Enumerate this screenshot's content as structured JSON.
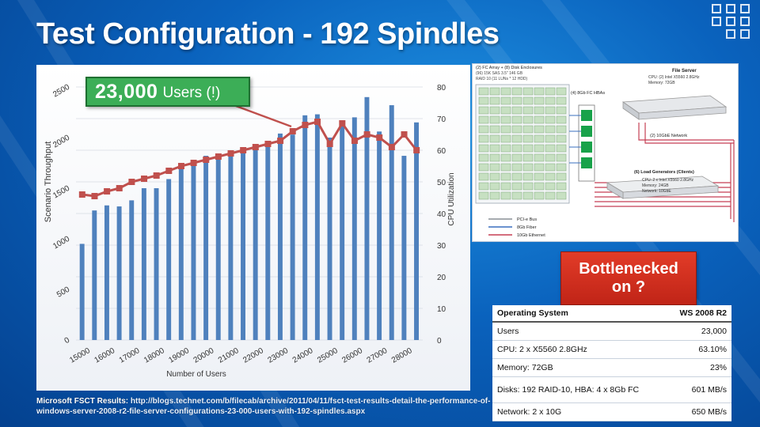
{
  "slide": {
    "title": "Test Configuration - 192 Spindles",
    "callout": {
      "number": "23,000",
      "text": "Users (!)"
    },
    "bottleneck": {
      "line1": "Bottlenecked",
      "line2": "on ?"
    },
    "source": {
      "label": "Microsoft FSCT Results:",
      "url": "http://blogs.technet.com/b/filecab/archive/2011/04/11/fsct-test-results-detail-the-performance-of-windows-server-2008-r2-file-server-configurations-23-000-users-with-192-spindles.aspx"
    }
  },
  "results_table": {
    "header": {
      "label": "Operating System",
      "value": "WS 2008 R2"
    },
    "rows": [
      {
        "label": "Users",
        "value": "23,000"
      },
      {
        "label": "CPU: 2 x X5560 2.8GHz",
        "value": "63.10%"
      },
      {
        "label": "Memory: 72GB",
        "value": "23%"
      },
      {
        "label": "Disks: 192 RAID-10, HBA: 4 x 8Gb FC",
        "value": "601 MB/s"
      },
      {
        "label": "Network: 2 x 10G",
        "value": "650 MB/s"
      }
    ]
  },
  "diagram": {
    "fc_array_label": "(2) FC Array + (8) Disk Enclosures",
    "fc_array_detail_1": "(96) 15K SAS 3.5\" 146 GB",
    "fc_array_detail_2": "RAID 10 (11 LUNs * 12 HDD)",
    "hba_label": "(4) 8Gb FC HBAs",
    "server_title": "File Server",
    "server_cpu": "CPU: (2) Intel X5560 2.8GHz",
    "server_memory": "Memory: 72GB",
    "network_label": "(2) 10GbE Network",
    "clients_title": "(6) Load Generators (Clients)",
    "clients_cpu": "CPU: 2 x Intel X5560 2.8GHz",
    "clients_memory": "Memory: 24GB",
    "clients_network": "Network: 10GbE",
    "legend": [
      "PCI-e Bus",
      "8Gb Fiber",
      "10Gb Ethernet"
    ]
  },
  "chart_data": {
    "type": "bar",
    "xlabel": "Number of Users",
    "ylabel": "Scenario Throughput",
    "y2label": "CPU Utilization",
    "ylim": [
      0,
      2500
    ],
    "y2lim": [
      0,
      80
    ],
    "y_ticks": [
      "0",
      "500",
      "1000",
      "1500",
      "2000",
      "2500"
    ],
    "y2_ticks": [
      "0",
      "10",
      "20",
      "30",
      "40",
      "50",
      "60",
      "70",
      "80"
    ],
    "x_ticks": [
      "15000",
      "16000",
      "17000",
      "18000",
      "19000",
      "20000",
      "21000",
      "22000",
      "23000",
      "24000",
      "25000",
      "26000",
      "27000",
      "28000"
    ],
    "categories": [
      "15000",
      "15500",
      "16000",
      "16500",
      "17000",
      "17500",
      "18000",
      "18500",
      "19000",
      "19500",
      "20000",
      "20500",
      "21000",
      "21500",
      "22000",
      "22500",
      "23000",
      "23500",
      "24000",
      "24500",
      "25000",
      "25500",
      "26000",
      "26500",
      "27000",
      "27500",
      "28000",
      "28500"
    ],
    "series": [
      {
        "name": "Scenario Throughput",
        "kind": "bar",
        "color": "#4f81bd",
        "values": [
          950,
          1280,
          1330,
          1320,
          1380,
          1500,
          1500,
          1590,
          1740,
          1760,
          1820,
          1830,
          1850,
          1880,
          1920,
          1950,
          2040,
          2030,
          2220,
          2230,
          2000,
          2130,
          2200,
          2400,
          2060,
          2320,
          1820,
          2150
        ]
      },
      {
        "name": "CPU Utilization",
        "kind": "line",
        "color": "#c0504d",
        "values": [
          46,
          45.5,
          47,
          48,
          50,
          51,
          52,
          53.5,
          55,
          56,
          57,
          58,
          59,
          60,
          61,
          62,
          63,
          66,
          68,
          69,
          62,
          68.5,
          63,
          65,
          64,
          61,
          65,
          60
        ]
      }
    ]
  }
}
